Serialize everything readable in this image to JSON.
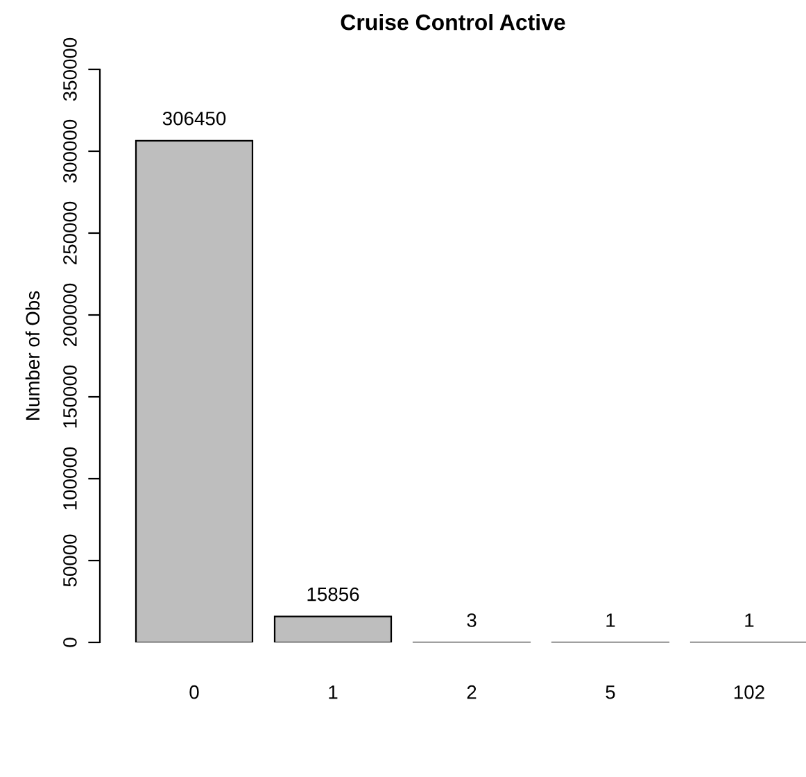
{
  "chart_data": {
    "type": "bar",
    "title": "Cruise Control Active",
    "ylabel": "Number of Obs",
    "categories": [
      "0",
      "1",
      "2",
      "5",
      "102"
    ],
    "values": [
      306450,
      15856,
      3,
      1,
      1
    ],
    "color": "#bebebe",
    "ylim": [
      0,
      350000
    ],
    "yticks": [
      0,
      50000,
      100000,
      150000,
      200000,
      250000,
      300000,
      350000
    ],
    "data_labels": true,
    "grid": false,
    "legend": false
  }
}
